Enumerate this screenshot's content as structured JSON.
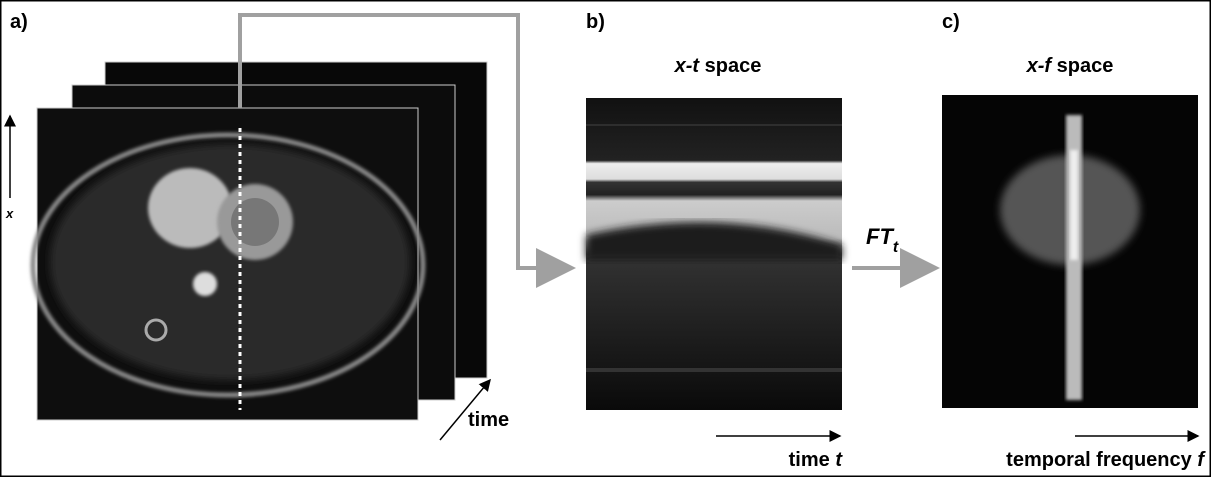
{
  "panels": [
    {
      "label": "a)",
      "axis_label": "x",
      "time_label": "time"
    },
    {
      "label": "b)",
      "title_italic": "x-t",
      "title": "space",
      "axis_label": "time",
      "axis_var": "t"
    },
    {
      "label": "c)",
      "title_italic": "x-f",
      "title": "space",
      "axis_label": "temporal frequency",
      "axis_var": "f"
    }
  ],
  "transform": {
    "name": "FT",
    "subscript": "t"
  }
}
